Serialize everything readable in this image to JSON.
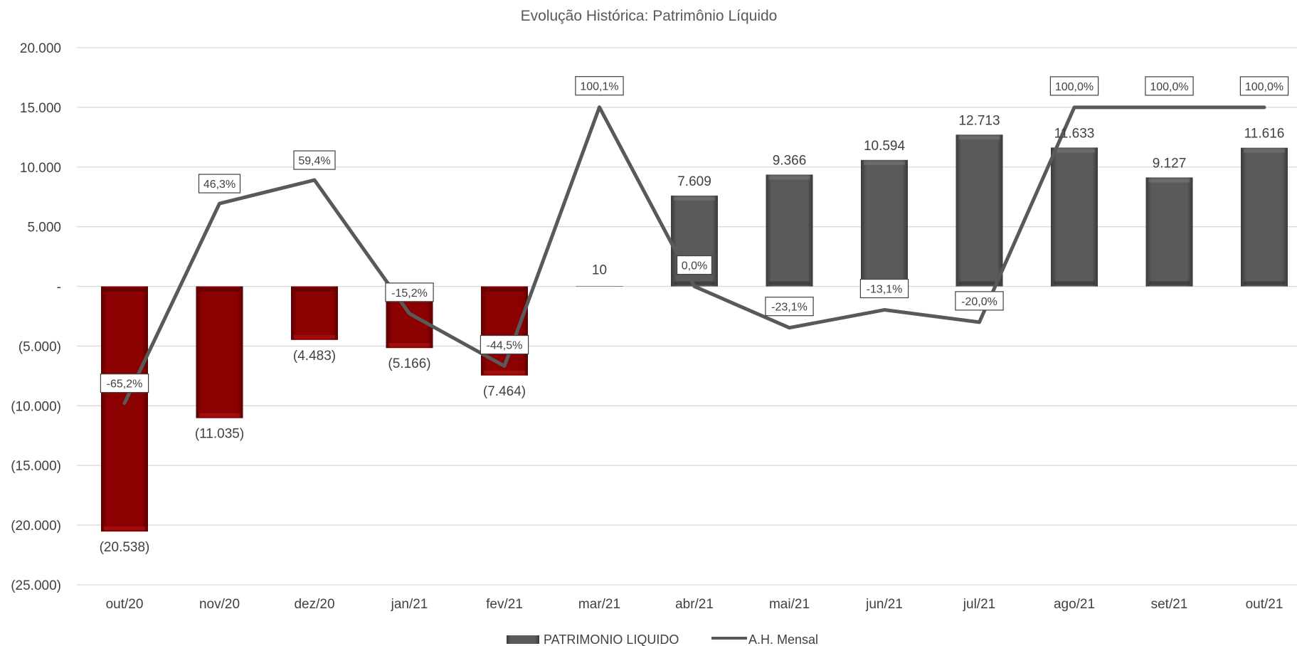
{
  "chart_data": {
    "type": "bar",
    "title": "Evolução Histórica: Patrimônio Líquido",
    "categories": [
      "out/20",
      "nov/20",
      "dez/20",
      "jan/21",
      "fev/21",
      "mar/21",
      "abr/21",
      "mai/21",
      "jun/21",
      "jul/21",
      "ago/21",
      "set/21",
      "out/21"
    ],
    "series": [
      {
        "name": "PATRIMONIO LIQUIDO",
        "kind": "bar",
        "values": [
          -20538,
          -11035,
          -4483,
          -5166,
          -7464,
          10,
          7609,
          9366,
          10594,
          12713,
          11633,
          9127,
          11616
        ],
        "labels": [
          "(20.538)",
          "(11.035)",
          "(4.483)",
          "(5.166)",
          "(7.464)",
          "10",
          "7.609",
          "9.366",
          "10.594",
          "12.713",
          "11.633",
          "9.127",
          "11.616"
        ],
        "color_negative": "#8b0000",
        "color_positive": "#595959"
      },
      {
        "name": "A.H. Mensal",
        "kind": "line",
        "axis": "secondary",
        "values": [
          -65.2,
          46.3,
          59.4,
          -15.2,
          -44.5,
          100.1,
          0.0,
          -23.1,
          -13.1,
          -20.0,
          100.0,
          100.0,
          100.0
        ],
        "labels": [
          "-65,2%",
          "46,3%",
          "59,4%",
          "-15,2%",
          "-44,5%",
          "100,1%",
          "0,0%",
          "-23,1%",
          "-13,1%",
          "-20,0%",
          "100,0%",
          "100,0%",
          "100,0%"
        ],
        "color": "#595959"
      }
    ],
    "yticks": [
      "20.000",
      "15.000",
      "10.000",
      "5.000",
      "-",
      "(5.000)",
      "(10.000)",
      "(15.000)",
      "(20.000)",
      "(25.000)"
    ],
    "ylim": [
      -25000,
      20000
    ],
    "grid": true,
    "legend_position": "bottom"
  }
}
